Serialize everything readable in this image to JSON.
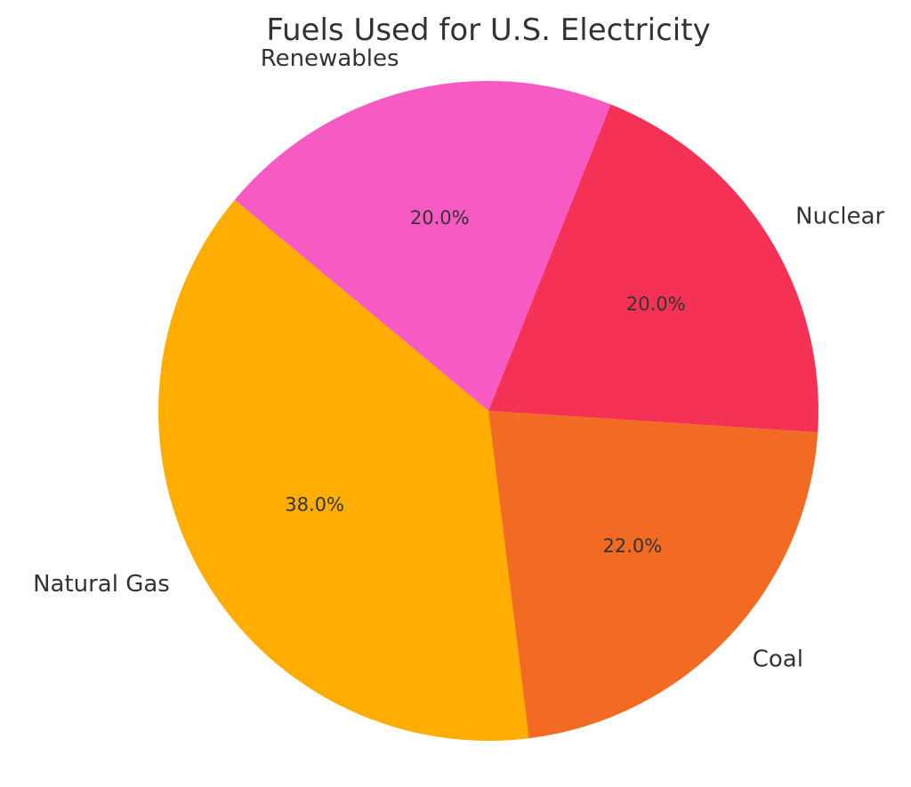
{
  "chart_data": {
    "type": "pie",
    "title": "Fuels Used for U.S. Electricity",
    "slices": [
      {
        "label": "Nuclear",
        "value": 20.0,
        "pct_label": "20.0%",
        "color": "#F53255"
      },
      {
        "label": "Renewables",
        "value": 20.0,
        "pct_label": "20.0%",
        "color": "#F75AC2"
      },
      {
        "label": "Natural Gas",
        "value": 38.0,
        "pct_label": "38.0%",
        "color": "#FFAE00"
      },
      {
        "label": "Coal",
        "value": 22.0,
        "pct_label": "22.0%",
        "color": "#F36B22"
      }
    ],
    "start_angle": -3.75,
    "direction": "counterclockwise"
  }
}
